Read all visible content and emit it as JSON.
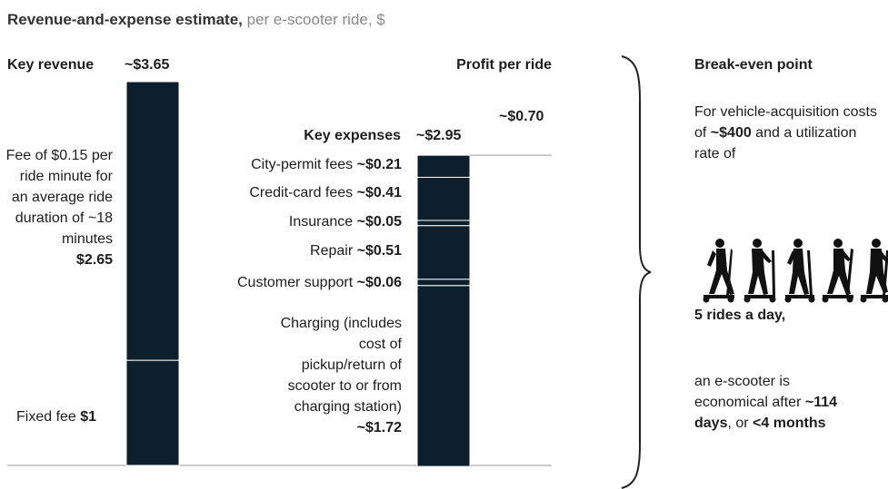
{
  "chart_data": {
    "type": "waterfall",
    "title": "Revenue-and-expense estimate,",
    "subtitle": "per e-scooter ride, $",
    "color": "#0d1f2d",
    "revenue": {
      "label": "Key revenue",
      "total": 3.65,
      "total_label": "~$3.65",
      "segments": [
        {
          "name": "Fee of $0.15 per ride minute for an average ride duration of ~18 minutes",
          "value": 2.65,
          "value_label": "$2.65"
        },
        {
          "name": "Fixed fee",
          "value": 1,
          "value_label": "$1"
        }
      ]
    },
    "expenses": {
      "label": "Key expenses",
      "total": 2.95,
      "total_label": "~$2.95",
      "segments": [
        {
          "name": "City-permit fees",
          "value": 0.21,
          "value_label": "~$0.21"
        },
        {
          "name": "Credit-card fees",
          "value": 0.41,
          "value_label": "~$0.41"
        },
        {
          "name": "Insurance",
          "value": 0.05,
          "value_label": "~$0.05"
        },
        {
          "name": "Repair",
          "value": 0.51,
          "value_label": "~$0.51"
        },
        {
          "name": "Customer support",
          "value": 0.06,
          "value_label": "~$0.06"
        },
        {
          "name": "Charging (includes cost of pickup/return of scooter to or from charging station)",
          "value": 1.72,
          "value_label": "~$1.72"
        }
      ]
    },
    "profit": {
      "label": "Profit per ride",
      "value": 0.7,
      "value_label": "~$0.70"
    }
  },
  "break_even": {
    "title": "Break-even point",
    "intro": [
      "For vehicle-acquisition costs of ",
      "~$400",
      " and a utilization rate of"
    ],
    "rides": "5 rides a day,",
    "conclusion": [
      "an e-scooter is economical after ",
      "~114 days",
      ", or ",
      "<4 months"
    ]
  }
}
